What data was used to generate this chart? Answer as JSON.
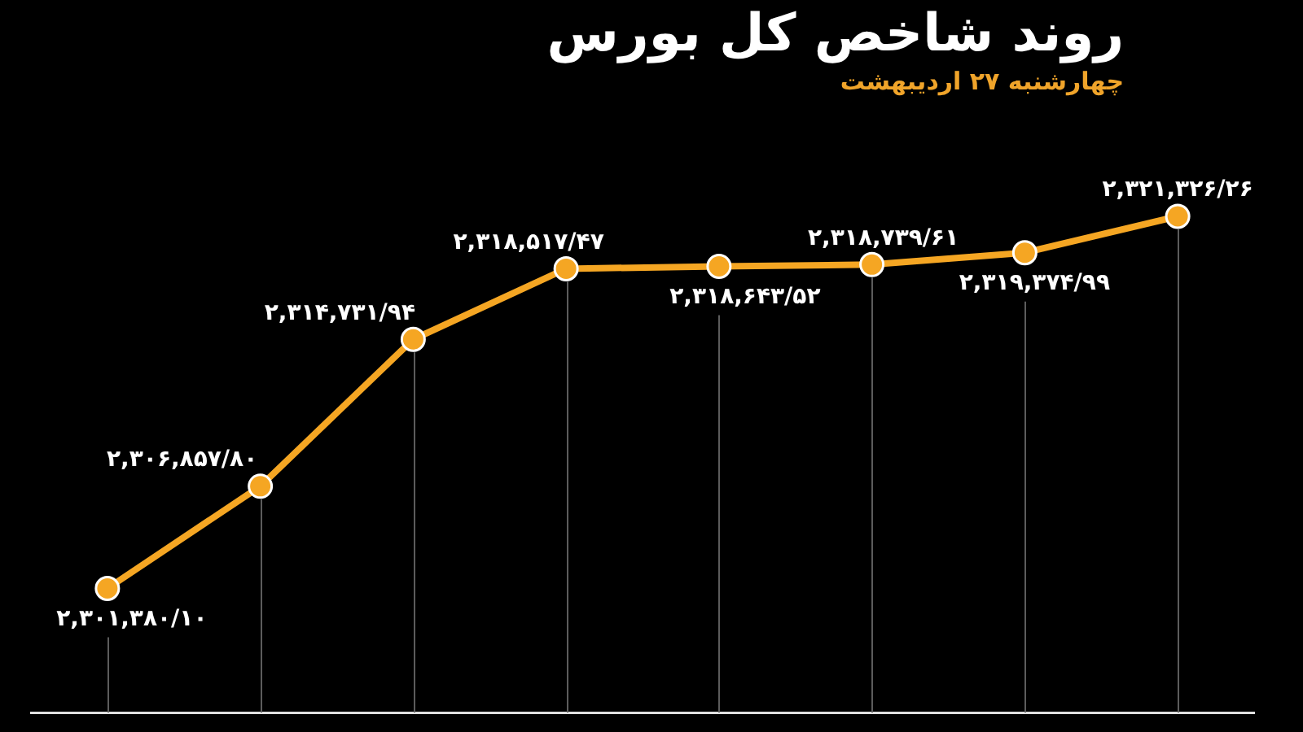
{
  "chart_data": {
    "type": "line",
    "title": "روند شاخص کل بورس",
    "subtitle": "چهارشنبه ۲۷ اردیبهشت",
    "categories": [
      null,
      null,
      null,
      null,
      null,
      null,
      null,
      null
    ],
    "series": [
      {
        "color": "#f5a623",
        "values": [
          2301380.1,
          2306857.8,
          2314731.94,
          2318517.47,
          2318643.52,
          2318739.61,
          2319374.99,
          2321326.26
        ],
        "value_labels": [
          "۲,۳۰۱,۳۸۰/۱۰",
          "۲,۳۰۶,۸۵۷/۸۰",
          "۲,۳۱۴,۷۳۱/۹۴",
          "۲,۳۱۸,۵۱۷/۴۷",
          "۲,۳۱۸,۶۴۳/۵۲",
          "۲,۳۱۸,۷۳۹/۶۱",
          "۲,۳۱۹,۳۷۴/۹۹",
          "۲,۳۲۱,۳۲۶/۲۶"
        ]
      }
    ],
    "marker": "circle",
    "line_style": "solid",
    "grid": "x",
    "legend": false,
    "tick_labels": false
  }
}
